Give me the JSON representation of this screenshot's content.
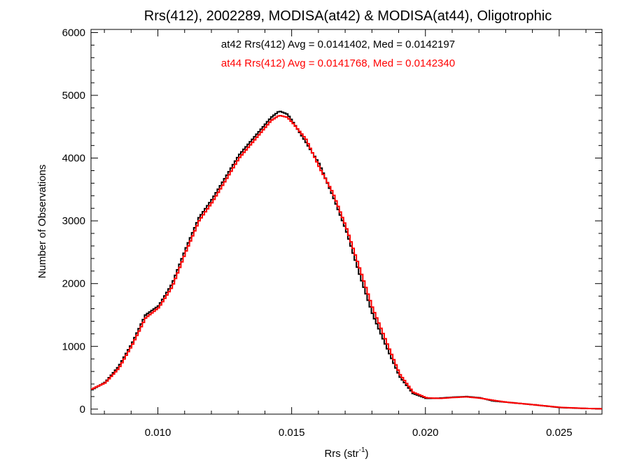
{
  "chart_data": {
    "type": "line",
    "title": "Rrs(412), 2002289, MODISA(at42) & MODISA(at44), Oligotrophic",
    "xlabel_main": "Rrs (str",
    "xlabel_sup": "-1",
    "xlabel_close": ")",
    "ylabel": "Number of Observations",
    "xlim": [
      0.0075,
      0.0266
    ],
    "ylim": [
      -80,
      6050
    ],
    "xticks": [
      0.01,
      0.015,
      0.02,
      0.025
    ],
    "xtick_labels": [
      "0.010",
      "0.015",
      "0.020",
      "0.025"
    ],
    "yticks": [
      0,
      1000,
      2000,
      3000,
      4000,
      5000,
      6000
    ],
    "ytick_labels": [
      "0",
      "1000",
      "2000",
      "3000",
      "4000",
      "5000",
      "6000"
    ],
    "grid": false,
    "annotations": [
      {
        "text": "at42 Rrs(412) Avg = 0.0141402, Med = 0.0142197",
        "color": "#000000"
      },
      {
        "text": "at44 Rrs(412) Avg = 0.0141768, Med = 0.0142340",
        "color": "#ff0000"
      }
    ],
    "series": [
      {
        "color": "#000000",
        "step": true,
        "x": [
          0.0075,
          0.008,
          0.0085,
          0.009,
          0.0095,
          0.01,
          0.0105,
          0.011,
          0.0115,
          0.012,
          0.0125,
          0.013,
          0.0135,
          0.014,
          0.0142,
          0.0145,
          0.0148,
          0.015,
          0.0155,
          0.016,
          0.0165,
          0.017,
          0.0175,
          0.018,
          0.0185,
          0.019,
          0.0195,
          0.02,
          0.0205,
          0.021,
          0.0215,
          0.022,
          0.0225,
          0.023,
          0.024,
          0.025,
          0.026,
          0.0266
        ],
        "y": [
          310,
          430,
          680,
          1050,
          1500,
          1650,
          2000,
          2550,
          3050,
          3350,
          3700,
          4050,
          4300,
          4550,
          4650,
          4750,
          4700,
          4580,
          4250,
          3900,
          3400,
          2850,
          2150,
          1500,
          1000,
          520,
          250,
          170,
          175,
          190,
          200,
          180,
          130,
          110,
          70,
          25,
          10,
          5
        ]
      },
      {
        "color": "#ff0000",
        "step": true,
        "x": [
          0.0075,
          0.008,
          0.0085,
          0.009,
          0.0095,
          0.01,
          0.0105,
          0.011,
          0.0115,
          0.012,
          0.0125,
          0.013,
          0.0135,
          0.014,
          0.0142,
          0.0145,
          0.0148,
          0.015,
          0.0155,
          0.016,
          0.0165,
          0.017,
          0.0175,
          0.018,
          0.0185,
          0.019,
          0.0195,
          0.02,
          0.0205,
          0.021,
          0.0215,
          0.022,
          0.0225,
          0.023,
          0.024,
          0.025,
          0.026,
          0.0266
        ],
        "y": [
          320,
          420,
          650,
          1020,
          1450,
          1620,
          1950,
          2500,
          3000,
          3300,
          3650,
          4000,
          4250,
          4500,
          4600,
          4680,
          4650,
          4560,
          4300,
          3850,
          3450,
          2900,
          2250,
          1600,
          1080,
          560,
          270,
          180,
          170,
          185,
          195,
          175,
          140,
          110,
          70,
          28,
          10,
          5
        ]
      }
    ]
  }
}
